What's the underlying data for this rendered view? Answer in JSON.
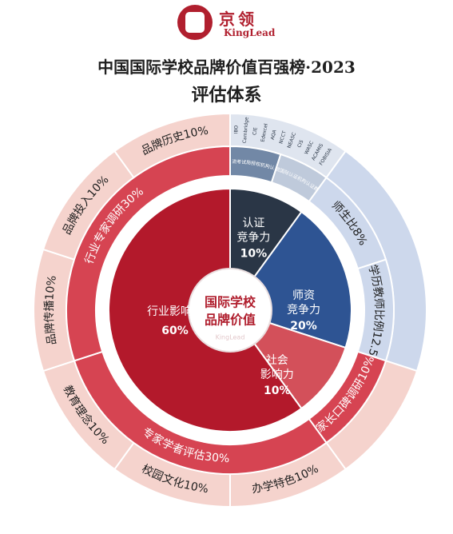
{
  "header": {
    "logo_cn": "京领",
    "logo_en": "KingLead",
    "title": "中国国际学校品牌价值百强榜·2023",
    "subtitle": "评估体系"
  },
  "center": {
    "line1": "国际学校",
    "line2": "品牌价值",
    "watermark": "KingLead"
  },
  "colors": {
    "brand_red": "#b01f2e",
    "industry": "#b3192b",
    "social": "#d3505a",
    "teacher": "#2e5493",
    "cert": "#2a3646",
    "ring2_red": "#d64452",
    "ring2_cert": "#7288a6",
    "ring2_cert_light": "#bfcadb",
    "ring3_pink": "#f5d3cd",
    "ring3_blue": "#cdd8ec",
    "ring3_cert": "#dfe5ef",
    "ring_white": "#ffffff"
  },
  "chart_data": {
    "type": "pie",
    "title": "中国国际学校品牌价值百强榜·2023",
    "subtitle": "评估体系",
    "inner": [
      {
        "name": "认证竞争力",
        "value": 10
      },
      {
        "name": "师资竞争力",
        "value": 20
      },
      {
        "name": "社会影响力",
        "value": 10
      },
      {
        "name": "行业影响力",
        "value": 60
      }
    ],
    "inner_labels": [
      {
        "line1": "认证",
        "line2": "竞争力",
        "pct": "10%"
      },
      {
        "line1": "师资",
        "line2": "竞争力",
        "pct": "20%"
      },
      {
        "line1": "社会",
        "line2": "影响力",
        "pct": "10%"
      },
      {
        "line1": "行业影响力",
        "line2": "",
        "pct": "60%"
      }
    ],
    "middle": [
      {
        "label": "主流考试局授权机构认证",
        "value": 5
      },
      {
        "label": "主流国际认证机构认证数量",
        "value": 5
      },
      {
        "label": "师生比8%",
        "value": 8
      },
      {
        "label": "高学历教师比例12.5%",
        "value": 12.5
      },
      {
        "label": "家长口碑调研10%",
        "value": 10
      },
      {
        "label": "专家学者评估30%",
        "value": 30
      },
      {
        "label": "行业专家调研30%",
        "value": 30
      }
    ],
    "outer": [
      {
        "label": "办学特色10%",
        "value": 10
      },
      {
        "label": "校园文化10%",
        "value": 10
      },
      {
        "label": "教育理念10%",
        "value": 10
      },
      {
        "label": "品牌传播10%",
        "value": 10
      },
      {
        "label": "品牌投入10%",
        "value": 10
      },
      {
        "label": "品牌历史10%",
        "value": 10
      }
    ],
    "exam_boards": [
      "IBO",
      "Cambridge",
      "CIE",
      "Edexcel",
      "AQA"
    ],
    "accreditations": [
      "NCCT",
      "NEASC",
      "CIS",
      "WASC",
      "ACAMIS",
      "FOBISIA"
    ]
  }
}
